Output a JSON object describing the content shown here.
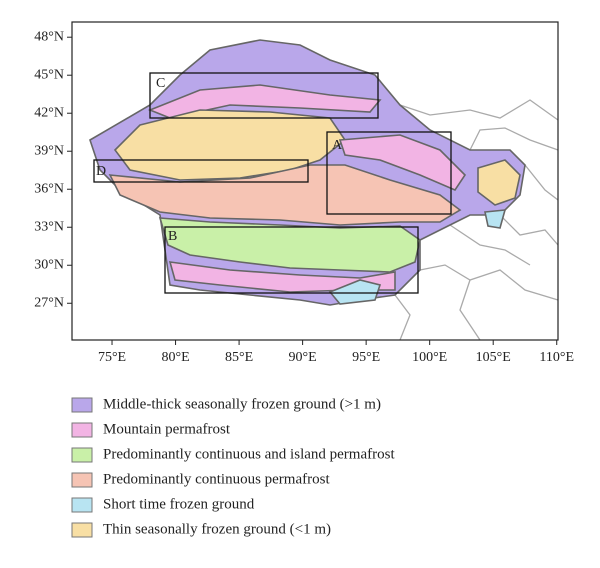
{
  "map": {
    "lon_range": [
      71.85,
      110.1
    ],
    "lat_range": [
      24.1,
      49.2
    ],
    "lon_ticks": [
      {
        "value": 75,
        "label": "75°E"
      },
      {
        "value": 80,
        "label": "80°E"
      },
      {
        "value": 85,
        "label": "85°E"
      },
      {
        "value": 90,
        "label": "90°E"
      },
      {
        "value": 95,
        "label": "95°E"
      },
      {
        "value": 100,
        "label": "100°E"
      },
      {
        "value": 105,
        "label": "105°E"
      },
      {
        "value": 110,
        "label": "110°E"
      }
    ],
    "lat_ticks": [
      {
        "value": 48,
        "label": "48°N"
      },
      {
        "value": 45,
        "label": "45°N"
      },
      {
        "value": 42,
        "label": "42°N"
      },
      {
        "value": 39,
        "label": "39°N"
      },
      {
        "value": 36,
        "label": "36°N"
      },
      {
        "value": 33,
        "label": "33°N"
      },
      {
        "value": 30,
        "label": "30°N"
      },
      {
        "value": 27,
        "label": "27°N"
      }
    ],
    "region_labels": [
      "A",
      "B",
      "C",
      "D"
    ],
    "legend": [
      {
        "label": "Middle-thick seasonally frozen ground (>1 m)",
        "color": "#b9a7ea"
      },
      {
        "label": "Mountain permafrost",
        "color": "#f2b4e4"
      },
      {
        "label": "Predominantly continuous and island permafrost",
        "color": "#c9f0a8"
      },
      {
        "label": "Predominantly continuous permafrost",
        "color": "#f6c4b4"
      },
      {
        "label": "Short time frozen ground",
        "color": "#b8e4f2"
      },
      {
        "label": "Thin seasonally frozen ground (<1 m)",
        "color": "#f8dfa4"
      }
    ]
  }
}
